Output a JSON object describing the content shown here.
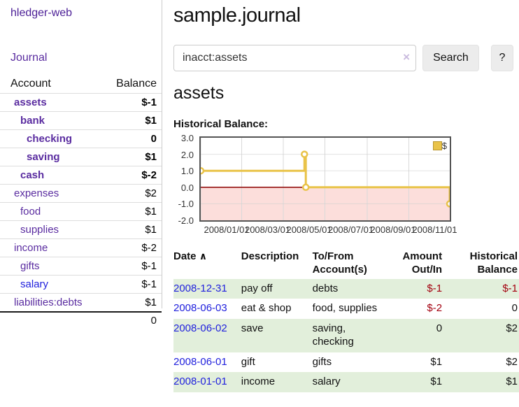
{
  "sidebar": {
    "app_title": "hledger-web",
    "journal_link": "Journal",
    "accounts_table": {
      "headers": [
        "Account",
        "Balance"
      ],
      "rows": [
        {
          "name": "assets",
          "depth": 1,
          "bold": true,
          "balance": "$-1",
          "balance_style": "neg-strong"
        },
        {
          "name": "bank",
          "depth": 2,
          "bold": true,
          "balance": "$1",
          "balance_style": "pos"
        },
        {
          "name": "checking",
          "depth": 3,
          "bold": true,
          "balance": "0",
          "balance_style": "pos"
        },
        {
          "name": "saving",
          "depth": 3,
          "bold": true,
          "balance": "$1",
          "balance_style": "pos"
        },
        {
          "name": "cash",
          "depth": 2,
          "bold": true,
          "balance": "$-2",
          "balance_style": "neg-strong"
        },
        {
          "name": "expenses",
          "depth": 1,
          "bold": false,
          "balance": "$2",
          "balance_style": "pos"
        },
        {
          "name": "food",
          "depth": 2,
          "bold": false,
          "balance": "$1",
          "balance_style": "pos"
        },
        {
          "name": "supplies",
          "depth": 2,
          "bold": false,
          "balance": "$1",
          "balance_style": "pos"
        },
        {
          "name": "income",
          "depth": 1,
          "bold": false,
          "balance": "$-2",
          "balance_style": "neg-faded"
        },
        {
          "name": "gifts",
          "depth": 2,
          "bold": false,
          "balance": "$-1",
          "balance_style": "neg-faded"
        },
        {
          "name": "salary",
          "depth": 2,
          "bold": false,
          "link_color": "blue",
          "balance": "$-1",
          "balance_style": "neg-faded"
        },
        {
          "name": "liabilities:debts",
          "depth": 1,
          "bold": false,
          "balance": "$1",
          "balance_style": "pos"
        }
      ],
      "total": "0"
    }
  },
  "main": {
    "title": "sample.journal",
    "search": {
      "value": "inacct:assets",
      "clear_icon": "×",
      "button_label": "Search",
      "help_label": "?"
    },
    "account_heading": "assets",
    "chart_label": "Historical Balance:"
  },
  "chart_data": {
    "type": "line",
    "title": "Historical Balance",
    "series": [
      {
        "name": "$",
        "color": "#e9c349",
        "step": true,
        "points": [
          [
            "2008-01-01",
            1
          ],
          [
            "2008-06-01",
            2
          ],
          [
            "2008-06-03",
            0
          ],
          [
            "2008-12-31",
            -1
          ]
        ]
      }
    ],
    "x_range": [
      "2008-01-01",
      "2008-12-31"
    ],
    "ylim": [
      -2,
      3
    ],
    "x_ticks": [
      "2008/01/01",
      "2008/03/01",
      "2008/05/01",
      "2008/07/01",
      "2008/09/01",
      "2008/11/01"
    ],
    "y_ticks": [
      "3.0",
      "2.0",
      "1.0",
      "0.0",
      "-1.0",
      "-2.0"
    ],
    "grid": true,
    "negative_region_color": "#fcdedb",
    "zero_line_color": "#8b0000",
    "legend": {
      "label": "$",
      "position": "top-right"
    }
  },
  "register": {
    "headers": [
      "Date",
      "Description",
      "To/From Account(s)",
      "Amount Out/In",
      "Historical Balance"
    ],
    "sort_indicator": "∧",
    "rows": [
      {
        "date": "2008-12-31",
        "description": "pay off",
        "accounts": "debts",
        "amount": "$-1",
        "amount_neg": true,
        "balance": "$-1",
        "balance_neg": true,
        "striped": true
      },
      {
        "date": "2008-06-03",
        "description": "eat & shop",
        "accounts": "food, supplies",
        "amount": "$-2",
        "amount_neg": true,
        "balance": "0",
        "balance_neg": false,
        "striped": false
      },
      {
        "date": "2008-06-02",
        "description": "save",
        "accounts": "saving, checking",
        "amount": "0",
        "amount_neg": false,
        "balance": "$2",
        "balance_neg": false,
        "striped": true
      },
      {
        "date": "2008-06-01",
        "description": "gift",
        "accounts": "gifts",
        "amount": "$1",
        "amount_neg": false,
        "balance": "$2",
        "balance_neg": false,
        "striped": false
      },
      {
        "date": "2008-01-01",
        "description": "income",
        "accounts": "salary",
        "amount": "$1",
        "amount_neg": false,
        "balance": "$1",
        "balance_neg": false,
        "striped": true
      }
    ]
  },
  "colors": {
    "link_purple": "#5a2ca0",
    "link_blue": "#2222dd",
    "negative_red": "#a3000f",
    "negative_faded": "#bb6a6a",
    "row_stripe_green": "#e2efdb",
    "chart_gold": "#e9c349",
    "chart_negative_pink": "#fcdedb",
    "chart_zero_line": "#8b0000"
  }
}
